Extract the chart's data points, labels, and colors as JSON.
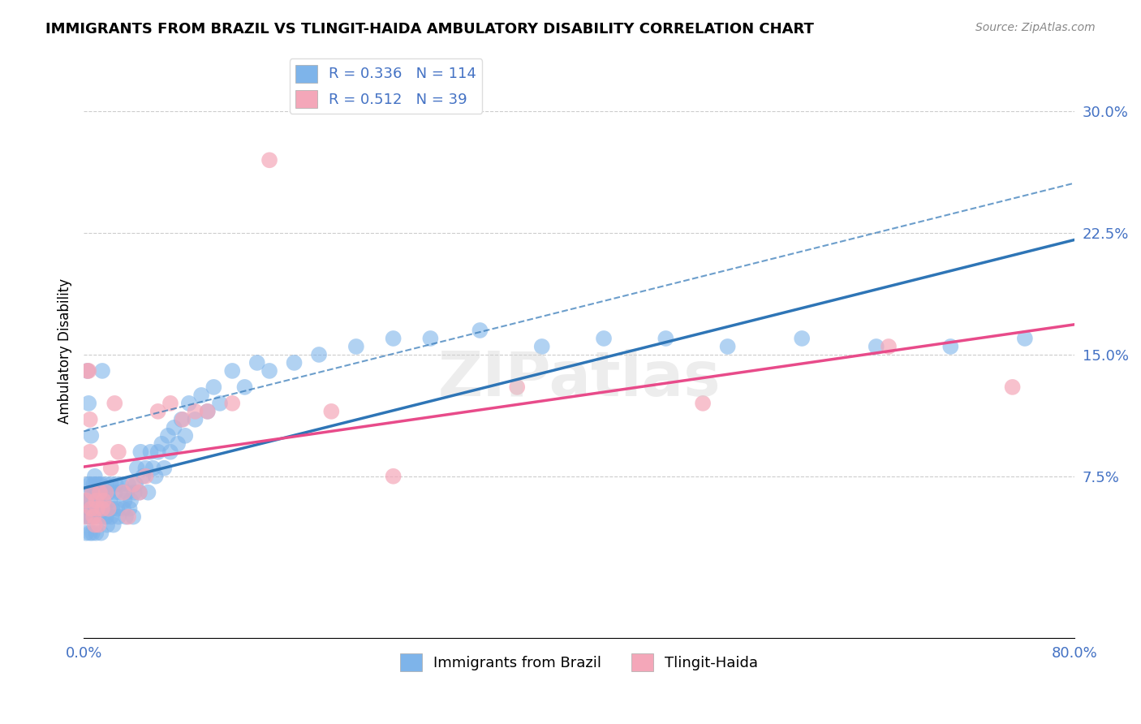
{
  "title": "IMMIGRANTS FROM BRAZIL VS TLINGIT-HAIDA AMBULATORY DISABILITY CORRELATION CHART",
  "source": "Source: ZipAtlas.com",
  "xlabel": "",
  "ylabel": "Ambulatory Disability",
  "xlim": [
    0.0,
    0.8
  ],
  "ylim": [
    -0.02,
    0.32
  ],
  "xticks": [
    0.0,
    0.1,
    0.2,
    0.3,
    0.4,
    0.5,
    0.6,
    0.7,
    0.8
  ],
  "xticklabels": [
    "0.0%",
    "",
    "",
    "",
    "",
    "",
    "",
    "",
    "80.0%"
  ],
  "yticks": [
    0.0,
    0.075,
    0.15,
    0.225,
    0.3
  ],
  "yticklabels": [
    "",
    "7.5%",
    "15.0%",
    "22.5%",
    "30.0%"
  ],
  "grid_yticks": [
    0.075,
    0.15,
    0.225,
    0.3
  ],
  "brazil_R": 0.336,
  "brazil_N": 114,
  "tlingit_R": 0.512,
  "tlingit_N": 39,
  "brazil_color": "#7EB4EA",
  "tlingit_color": "#F4A7B9",
  "brazil_line_color": "#2E75B6",
  "tlingit_line_color": "#E84B8A",
  "watermark": "ZIPatlas",
  "brazil_x": [
    0.001,
    0.002,
    0.003,
    0.003,
    0.004,
    0.004,
    0.004,
    0.005,
    0.005,
    0.005,
    0.005,
    0.006,
    0.006,
    0.006,
    0.007,
    0.007,
    0.007,
    0.008,
    0.008,
    0.008,
    0.009,
    0.009,
    0.009,
    0.01,
    0.01,
    0.01,
    0.01,
    0.011,
    0.011,
    0.012,
    0.012,
    0.012,
    0.013,
    0.013,
    0.014,
    0.014,
    0.015,
    0.015,
    0.016,
    0.016,
    0.017,
    0.017,
    0.018,
    0.018,
    0.019,
    0.02,
    0.02,
    0.021,
    0.022,
    0.022,
    0.023,
    0.024,
    0.025,
    0.026,
    0.027,
    0.028,
    0.029,
    0.03,
    0.032,
    0.033,
    0.034,
    0.035,
    0.036,
    0.037,
    0.038,
    0.04,
    0.041,
    0.042,
    0.043,
    0.045,
    0.046,
    0.048,
    0.05,
    0.052,
    0.054,
    0.056,
    0.058,
    0.06,
    0.063,
    0.065,
    0.068,
    0.07,
    0.073,
    0.076,
    0.079,
    0.082,
    0.085,
    0.09,
    0.095,
    0.1,
    0.105,
    0.11,
    0.12,
    0.13,
    0.14,
    0.15,
    0.17,
    0.19,
    0.22,
    0.25,
    0.28,
    0.32,
    0.37,
    0.42,
    0.47,
    0.52,
    0.58,
    0.64,
    0.7,
    0.76,
    0.003,
    0.004,
    0.006,
    0.015
  ],
  "brazil_y": [
    0.05,
    0.04,
    0.06,
    0.07,
    0.05,
    0.055,
    0.06,
    0.04,
    0.05,
    0.06,
    0.07,
    0.05,
    0.055,
    0.065,
    0.04,
    0.055,
    0.065,
    0.05,
    0.06,
    0.07,
    0.055,
    0.065,
    0.075,
    0.04,
    0.055,
    0.06,
    0.07,
    0.055,
    0.065,
    0.05,
    0.06,
    0.07,
    0.055,
    0.065,
    0.04,
    0.07,
    0.055,
    0.065,
    0.05,
    0.06,
    0.055,
    0.065,
    0.05,
    0.07,
    0.045,
    0.055,
    0.065,
    0.06,
    0.05,
    0.07,
    0.055,
    0.045,
    0.065,
    0.07,
    0.055,
    0.05,
    0.065,
    0.07,
    0.055,
    0.06,
    0.05,
    0.065,
    0.07,
    0.055,
    0.06,
    0.05,
    0.065,
    0.07,
    0.08,
    0.065,
    0.09,
    0.075,
    0.08,
    0.065,
    0.09,
    0.08,
    0.075,
    0.09,
    0.095,
    0.08,
    0.1,
    0.09,
    0.105,
    0.095,
    0.11,
    0.1,
    0.12,
    0.11,
    0.125,
    0.115,
    0.13,
    0.12,
    0.14,
    0.13,
    0.145,
    0.14,
    0.145,
    0.15,
    0.155,
    0.16,
    0.16,
    0.165,
    0.155,
    0.16,
    0.16,
    0.155,
    0.16,
    0.155,
    0.155,
    0.16,
    0.14,
    0.12,
    0.1,
    0.14
  ],
  "tlingit_x": [
    0.001,
    0.002,
    0.003,
    0.004,
    0.005,
    0.005,
    0.006,
    0.007,
    0.008,
    0.009,
    0.01,
    0.011,
    0.012,
    0.013,
    0.015,
    0.016,
    0.018,
    0.02,
    0.022,
    0.025,
    0.028,
    0.032,
    0.036,
    0.04,
    0.045,
    0.05,
    0.06,
    0.07,
    0.08,
    0.09,
    0.1,
    0.12,
    0.15,
    0.2,
    0.25,
    0.35,
    0.5,
    0.65,
    0.75
  ],
  "tlingit_y": [
    0.05,
    0.06,
    0.14,
    0.14,
    0.09,
    0.11,
    0.055,
    0.065,
    0.05,
    0.045,
    0.06,
    0.055,
    0.045,
    0.065,
    0.055,
    0.06,
    0.065,
    0.055,
    0.08,
    0.12,
    0.09,
    0.065,
    0.05,
    0.07,
    0.065,
    0.075,
    0.115,
    0.12,
    0.11,
    0.115,
    0.115,
    0.12,
    0.27,
    0.115,
    0.075,
    0.13,
    0.12,
    0.155,
    0.13
  ]
}
